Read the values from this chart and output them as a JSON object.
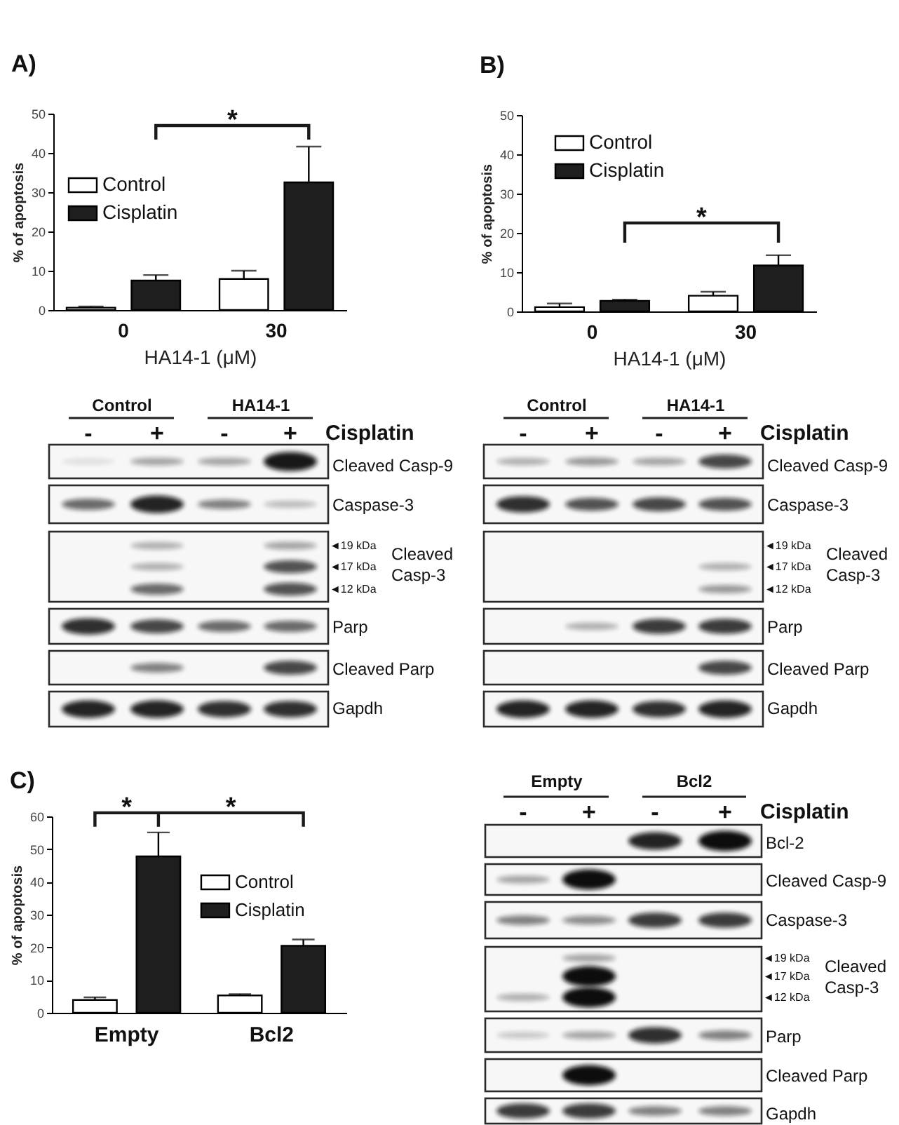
{
  "chart_data": [
    {
      "type": "bar",
      "title": "A)",
      "xlabel": "HA14-1 (μM)",
      "ylabel": "% of apoptosis",
      "categories": [
        "0",
        "30"
      ],
      "series": [
        {
          "name": "Control",
          "color": "#ffffff",
          "values": [
            0.6,
            7.9
          ],
          "errors": [
            [
              0.6,
              0.9
            ],
            [
              7.9,
              10
            ]
          ]
        },
        {
          "name": "Cisplatin",
          "color": "#1e1e1e",
          "values": [
            7.5,
            32.5
          ],
          "errors": [
            [
              7.5,
              8.9
            ],
            [
              32.5,
              41.6
            ]
          ]
        }
      ],
      "ylim": [
        0,
        50
      ],
      "yticks": [
        0,
        10,
        20,
        30,
        40,
        50
      ],
      "legend": "top left",
      "annotations": [
        "*"
      ]
    },
    {
      "type": "bar",
      "title": "B)",
      "xlabel": "HA14-1 (μM)",
      "ylabel": "% of apoptosis",
      "categories": [
        "0",
        "30"
      ],
      "series": [
        {
          "name": "Control",
          "color": "#ffffff",
          "values": [
            1.1,
            4.0
          ],
          "errors": [
            [
              1.1,
              2.0
            ],
            [
              4.0,
              5.0
            ]
          ]
        },
        {
          "name": "Cisplatin",
          "color": "#1e1e1e",
          "values": [
            2.7,
            11.7
          ],
          "errors": [
            [
              2.7,
              3.0
            ],
            [
              11.7,
              14.3
            ]
          ]
        }
      ],
      "ylim": [
        0,
        50
      ],
      "yticks": [
        0,
        10,
        20,
        30,
        40,
        50
      ],
      "legend": "top left",
      "annotations": [
        "*"
      ]
    },
    {
      "type": "other",
      "annotations": [
        "Control",
        "HA14-1",
        "-",
        "+",
        "-",
        "+",
        "Cisplatin",
        "Cleaved Casp-9",
        "Caspase-3",
        "◄19 kDa",
        "◄17 kDa",
        "◄12 kDa",
        "Cleaved",
        "Casp-3",
        "Parp",
        "Cleaved Parp",
        "Gapdh"
      ]
    },
    {
      "type": "other",
      "annotations": [
        "Control",
        "HA14-1",
        "-",
        "+",
        "-",
        "+",
        "Cisplatin",
        "Cleaved Casp-9",
        "Caspase-3",
        "◄19 kDa",
        "◄17 kDa",
        "◄12 kDa",
        "Cleaved",
        "Casp-3",
        "Parp",
        "Cleaved Parp",
        "Gapdh"
      ]
    },
    {
      "type": "bar",
      "title": "C)",
      "ylabel": "% of apoptosis",
      "categories": [
        "Empty",
        "Bcl2"
      ],
      "series": [
        {
          "name": "Control",
          "color": "#ffffff",
          "values": [
            3.9,
            5.3
          ],
          "errors": [
            [
              3.9,
              4.7
            ],
            [
              5.3,
              5.7
            ]
          ]
        },
        {
          "name": "Cisplatin",
          "color": "#1e1e1e",
          "values": [
            47.8,
            20.5
          ],
          "errors": [
            [
              47.8,
              55.1
            ],
            [
              20.5,
              22.4
            ]
          ]
        }
      ],
      "ylim": [
        0,
        60
      ],
      "yticks": [
        0,
        10,
        20,
        30,
        40,
        50,
        60
      ],
      "legend": "top right",
      "annotations": [
        "*",
        "*"
      ]
    },
    {
      "type": "other",
      "annotations": [
        "Empty",
        "Bcl2",
        "-",
        "+",
        "-",
        "+",
        "Cisplatin",
        "Bcl-2",
        "Cleaved Casp-9",
        "Caspase-3",
        "◄19 kDa",
        "◄17 kDa",
        "◄12 kDa",
        "Cleaved",
        "Casp-3",
        "Parp",
        "Cleaved Parp",
        "Gapdh"
      ]
    }
  ]
}
